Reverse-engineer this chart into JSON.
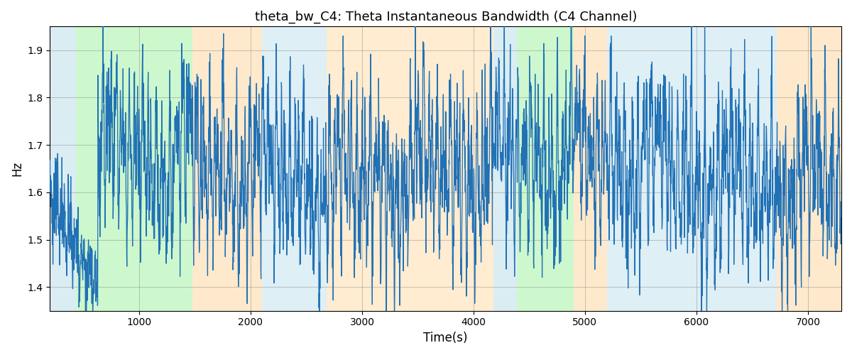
{
  "title": "theta_bw_C4: Theta Instantaneous Bandwidth (C4 Channel)",
  "xlabel": "Time(s)",
  "ylabel": "Hz",
  "xlim": [
    200,
    7300
  ],
  "ylim": [
    1.35,
    1.95
  ],
  "yticks": [
    1.4,
    1.5,
    1.6,
    1.7,
    1.8,
    1.9
  ],
  "xticks": [
    1000,
    2000,
    3000,
    4000,
    5000,
    6000,
    7000
  ],
  "line_color": "#2171b5",
  "line_width": 0.9,
  "background_bands": [
    {
      "xmin": 200,
      "xmax": 430,
      "color": "#add8e6",
      "alpha": 0.45
    },
    {
      "xmin": 430,
      "xmax": 1480,
      "color": "#90ee90",
      "alpha": 0.45
    },
    {
      "xmin": 1480,
      "xmax": 2100,
      "color": "#ffd59a",
      "alpha": 0.5
    },
    {
      "xmin": 2100,
      "xmax": 2680,
      "color": "#add8e6",
      "alpha": 0.4
    },
    {
      "xmin": 2680,
      "xmax": 4180,
      "color": "#ffd59a",
      "alpha": 0.45
    },
    {
      "xmin": 4180,
      "xmax": 4390,
      "color": "#add8e6",
      "alpha": 0.45
    },
    {
      "xmin": 4390,
      "xmax": 4900,
      "color": "#90ee90",
      "alpha": 0.45
    },
    {
      "xmin": 4900,
      "xmax": 5200,
      "color": "#ffd59a",
      "alpha": 0.5
    },
    {
      "xmin": 5200,
      "xmax": 6450,
      "color": "#add8e6",
      "alpha": 0.4
    },
    {
      "xmin": 6450,
      "xmax": 6720,
      "color": "#add8e6",
      "alpha": 0.4
    },
    {
      "xmin": 6720,
      "xmax": 7300,
      "color": "#ffd59a",
      "alpha": 0.5
    }
  ],
  "seed": 42,
  "n_points": 3500,
  "t_start": 200,
  "t_end": 7300
}
